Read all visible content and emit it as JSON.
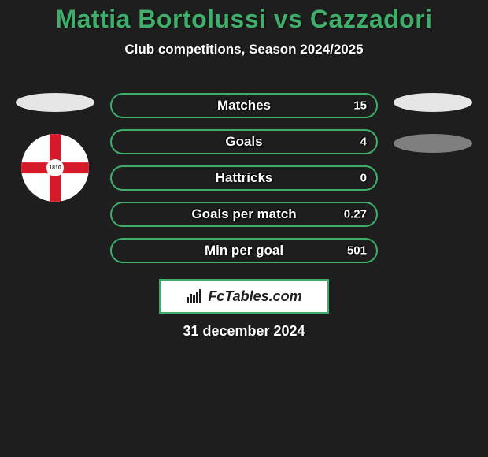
{
  "background_color": "#1e1e1e",
  "title": {
    "text": "Mattia Bortolussi vs Cazzadori",
    "color": "#3fae6a",
    "fontsize": 32
  },
  "subtitle": {
    "text": "Club competitions, Season 2024/2025",
    "color": "#ffffff",
    "fontsize": 17
  },
  "bars": {
    "border_color": "#3fae6a",
    "fill_color": "#1e1e1e",
    "label_color": "#ffffff",
    "value_color": "#ffffff",
    "label_fontsize": 17,
    "value_fontsize": 15,
    "items": [
      {
        "label": "Matches",
        "value": "15"
      },
      {
        "label": "Goals",
        "value": "4"
      },
      {
        "label": "Hattricks",
        "value": "0"
      },
      {
        "label": "Goals per match",
        "value": "0.27"
      },
      {
        "label": "Min per goal",
        "value": "501"
      }
    ]
  },
  "left_player": {
    "ellipse_color": "#e6e6e6",
    "badge": {
      "bg_left": "#ffffff",
      "bg_right": "#ffffff",
      "cross_color": "#d61a2a",
      "ring_bg": "#ffffff",
      "ring_text": "1810",
      "ring_text_color": "#333333",
      "outer_ring": "#d9d9d9"
    }
  },
  "right_player": {
    "ellipse_color_1": "#e6e6e6",
    "ellipse_color_2": "#7f7f7f"
  },
  "fctables": {
    "box_bg": "#ffffff",
    "box_border": "#3fae6a",
    "text": "FcTables.com",
    "text_color": "#1e1e1e",
    "text_fontsize": 18,
    "icon_color": "#1e1e1e"
  },
  "date": {
    "text": "31 december 2024",
    "color": "#ffffff",
    "fontsize": 18
  }
}
